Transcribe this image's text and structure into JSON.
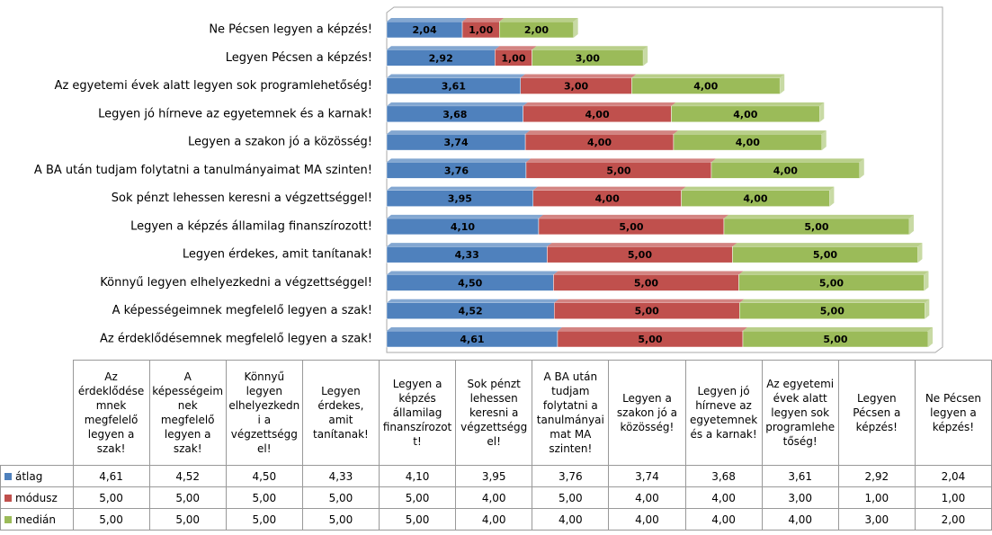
{
  "chart_data": {
    "type": "bar",
    "orientation": "horizontal",
    "stacked": true,
    "categories": [
      "Az érdeklődésemnek megfelelő legyen a szak!",
      "A képességeimnek megfelelő legyen a szak!",
      "Könnyű legyen elhelyezkedni a végzettséggel!",
      "Legyen érdekes, amit tanítanak!",
      "Legyen a képzés államilag finanszírozott!",
      "Sok pénzt lehessen keresni a végzettséggel!",
      "A BA után tudjam folytatni a tanulmányaimat MA szinten!",
      "Legyen a szakon jó a közösség!",
      "Legyen jó hírneve az egyetemnek és a karnak!",
      "Az egyetemi évek alatt legyen sok programlehetőség!",
      "Legyen Pécsen a képzés!",
      "Ne Pécsen legyen a képzés!"
    ],
    "series": [
      {
        "name": "átlag",
        "color": "#4f81bd",
        "values": [
          4.61,
          4.52,
          4.5,
          4.33,
          4.1,
          3.95,
          3.76,
          3.74,
          3.68,
          3.61,
          2.92,
          2.04
        ],
        "value_labels": [
          "4,61",
          "4,52",
          "4,50",
          "4,33",
          "4,10",
          "3,95",
          "3,76",
          "3,74",
          "3,68",
          "3,61",
          "2,92",
          "2,04"
        ]
      },
      {
        "name": "módusz",
        "color": "#c0504d",
        "values": [
          5,
          5,
          5,
          5,
          5,
          4,
          5,
          4,
          4,
          3,
          1,
          1
        ],
        "value_labels": [
          "5,00",
          "5,00",
          "5,00",
          "5,00",
          "5,00",
          "4,00",
          "5,00",
          "4,00",
          "4,00",
          "3,00",
          "1,00",
          "1,00"
        ]
      },
      {
        "name": "medián",
        "color": "#9bbb59",
        "values": [
          5,
          5,
          5,
          5,
          5,
          4,
          4,
          4,
          4,
          4,
          3,
          2
        ],
        "value_labels": [
          "5,00",
          "5,00",
          "5,00",
          "5,00",
          "5,00",
          "4,00",
          "4,00",
          "4,00",
          "4,00",
          "4,00",
          "3,00",
          "2,00"
        ]
      }
    ]
  }
}
